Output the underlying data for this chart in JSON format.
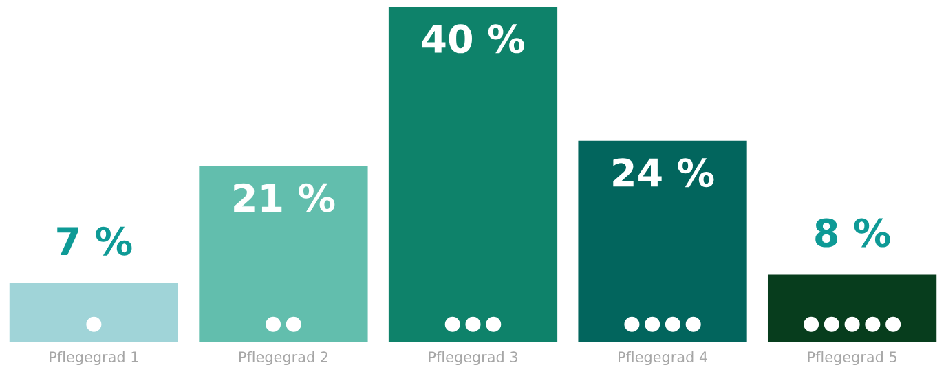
{
  "chart_data": {
    "type": "bar",
    "categories": [
      "Pflegegrad 1",
      "Pflegegrad 2",
      "Pflegegrad 3",
      "Pflegegrad 4",
      "Pflegegrad 5"
    ],
    "values": [
      7,
      21,
      40,
      24,
      8
    ],
    "colors": [
      "#a0d4d8",
      "#62bead",
      "#0e826a",
      "#02655d",
      "#073d1d"
    ],
    "value_labels": [
      "7 %",
      "21 %",
      "40 %",
      "24 %",
      "8 %"
    ],
    "grid": false,
    "legend": false
  }
}
